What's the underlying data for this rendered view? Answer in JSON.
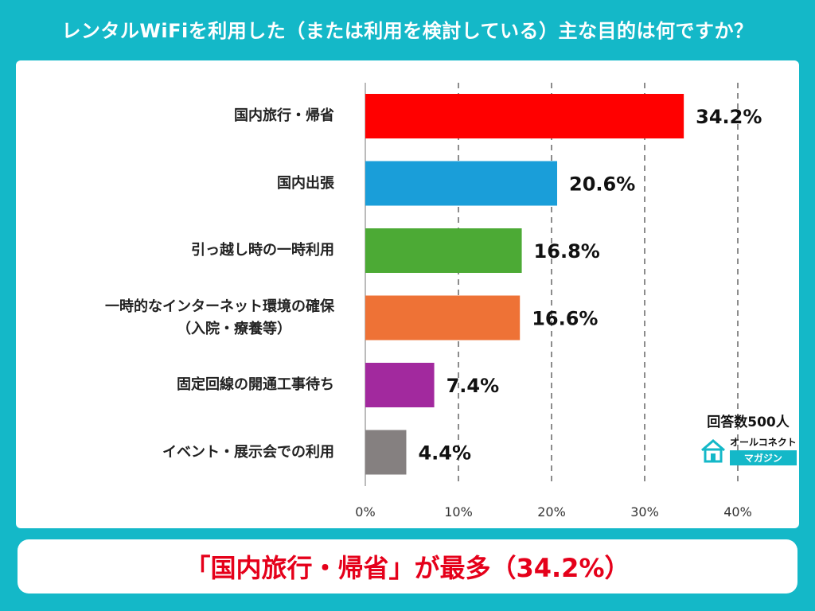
{
  "title": "レンタルWiFiを利用した（または利用を検討している）主な目的は何ですか？",
  "chart_data": {
    "type": "bar",
    "orientation": "horizontal",
    "categories": [
      "国内旅行・帰省",
      "国内出張",
      "引っ越し時の一時利用",
      "一時的なインターネット環境の確保\n（入院・療養等）",
      "固定回線の開通工事待ち",
      "イベント・展示会での利用"
    ],
    "values": [
      34.2,
      20.6,
      16.8,
      16.6,
      7.4,
      4.4
    ],
    "value_labels": [
      "34.2%",
      "20.6%",
      "16.8%",
      "16.6%",
      "7.4%",
      "4.4%"
    ],
    "colors": [
      "#ff0000",
      "#1a9ed9",
      "#4caa35",
      "#ee7236",
      "#a2299e",
      "#858080"
    ],
    "xlim": [
      0,
      40
    ],
    "x_ticks": [
      "0%",
      "10%",
      "20%",
      "30%",
      "40%"
    ],
    "grid": "vertical dashed"
  },
  "respondents": "回答数500人",
  "logo": {
    "top": "オールコネクト",
    "bottom": "マガジン"
  },
  "footer": "「国内旅行・帰省」が最多（34.2%）"
}
